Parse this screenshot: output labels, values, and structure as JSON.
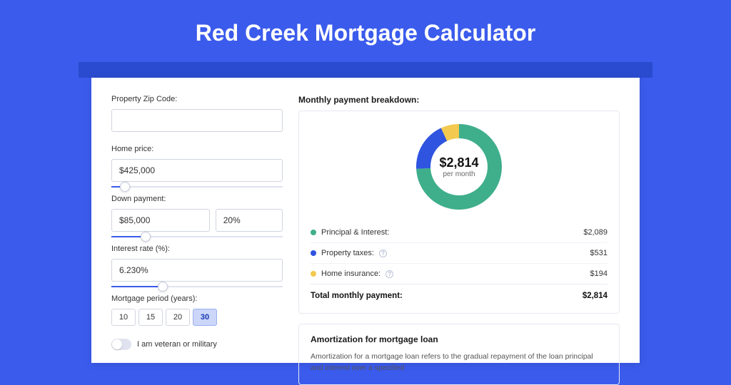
{
  "page_title": "Red Creek Mortgage Calculator",
  "colors": {
    "page_bg": "#3b5bec",
    "header_band": "#2a4bcf",
    "card_bg": "#ffffff",
    "accent": "#3b5bec",
    "border": "#d0d5e0"
  },
  "form": {
    "zip_label": "Property Zip Code:",
    "zip_value": "",
    "home_price_label": "Home price:",
    "home_price_value": "$425,000",
    "home_price_slider_pct": 8,
    "down_payment_label": "Down payment:",
    "down_payment_value": "$85,000",
    "down_payment_pct_value": "20%",
    "down_payment_slider_pct": 20,
    "interest_label": "Interest rate (%):",
    "interest_value": "6.230%",
    "interest_slider_pct": 30,
    "period_label": "Mortgage period (years):",
    "period_options": [
      "10",
      "15",
      "20",
      "30"
    ],
    "period_selected": "30",
    "veteran_label": "I am veteran or military",
    "veteran_on": false
  },
  "breakdown": {
    "title": "Monthly payment breakdown:",
    "donut": {
      "type": "donut",
      "center_value": "$2,814",
      "center_sub": "per month",
      "thickness": 20,
      "slices": [
        {
          "label": "Principal & Interest",
          "value": 2089,
          "color": "#3fae8b"
        },
        {
          "label": "Property taxes",
          "value": 531,
          "color": "#2f54e0"
        },
        {
          "label": "Home insurance",
          "value": 194,
          "color": "#f3c94f"
        }
      ]
    },
    "items": [
      {
        "label": "Principal & Interest:",
        "amount": "$2,089",
        "color": "#3fae8b",
        "info": false
      },
      {
        "label": "Property taxes:",
        "amount": "$531",
        "color": "#2f54e0",
        "info": true
      },
      {
        "label": "Home insurance:",
        "amount": "$194",
        "color": "#f3c94f",
        "info": true
      }
    ],
    "total_label": "Total monthly payment:",
    "total_amount": "$2,814"
  },
  "amortization": {
    "title": "Amortization for mortgage loan",
    "text": "Amortization for a mortgage loan refers to the gradual repayment of the loan principal and interest over a specified"
  }
}
